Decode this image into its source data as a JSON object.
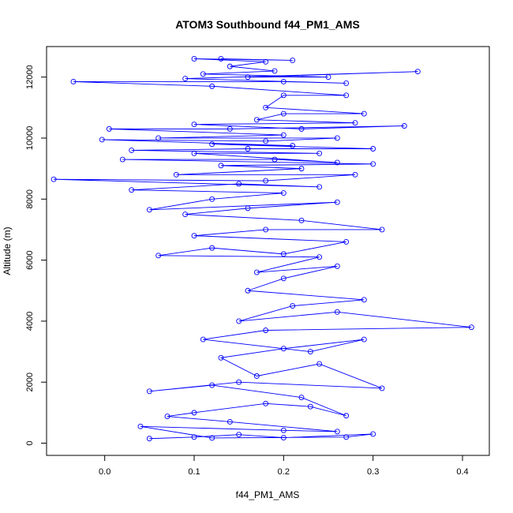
{
  "chart_data": {
    "type": "line",
    "title": "ATOM3 Southbound f44_PM1_AMS",
    "xlabel": "f44_PM1_AMS",
    "ylabel": "Altitude (m)",
    "xlim": [
      -0.065,
      0.43
    ],
    "ylim": [
      -400,
      13000
    ],
    "x_ticks": [
      0.0,
      0.1,
      0.2,
      0.3,
      0.4
    ],
    "x_tick_labels": [
      "0.0",
      "0.1",
      "0.2",
      "0.3",
      "0.4"
    ],
    "y_ticks": [
      0,
      2000,
      4000,
      6000,
      8000,
      10000,
      12000
    ],
    "y_tick_labels": [
      "0",
      "2000",
      "4000",
      "6000",
      "8000",
      "10000",
      "12000"
    ],
    "color": "#0000FF",
    "marker": "open-circle",
    "grid": false,
    "legend": "none",
    "series": [
      {
        "values": [
          {
            "x": 0.05,
            "y": 150
          },
          {
            "x": 0.1,
            "y": 200
          },
          {
            "x": 0.15,
            "y": 280
          },
          {
            "x": 0.2,
            "y": 180
          },
          {
            "x": 0.3,
            "y": 300
          },
          {
            "x": 0.27,
            "y": 200
          },
          {
            "x": 0.12,
            "y": 170
          },
          {
            "x": 0.04,
            "y": 550
          },
          {
            "x": 0.2,
            "y": 420
          },
          {
            "x": 0.26,
            "y": 380
          },
          {
            "x": 0.14,
            "y": 700
          },
          {
            "x": 0.07,
            "y": 880
          },
          {
            "x": 0.1,
            "y": 1000
          },
          {
            "x": 0.18,
            "y": 1300
          },
          {
            "x": 0.23,
            "y": 1200
          },
          {
            "x": 0.27,
            "y": 900
          },
          {
            "x": 0.22,
            "y": 1500
          },
          {
            "x": 0.12,
            "y": 1900
          },
          {
            "x": 0.05,
            "y": 1700
          },
          {
            "x": 0.15,
            "y": 2000
          },
          {
            "x": 0.31,
            "y": 1800
          },
          {
            "x": 0.24,
            "y": 2600
          },
          {
            "x": 0.17,
            "y": 2200
          },
          {
            "x": 0.13,
            "y": 2800
          },
          {
            "x": 0.2,
            "y": 3100
          },
          {
            "x": 0.29,
            "y": 3400
          },
          {
            "x": 0.23,
            "y": 3000
          },
          {
            "x": 0.11,
            "y": 3400
          },
          {
            "x": 0.18,
            "y": 3700
          },
          {
            "x": 0.41,
            "y": 3800
          },
          {
            "x": 0.26,
            "y": 4300
          },
          {
            "x": 0.15,
            "y": 4000
          },
          {
            "x": 0.21,
            "y": 4500
          },
          {
            "x": 0.29,
            "y": 4700
          },
          {
            "x": 0.16,
            "y": 5000
          },
          {
            "x": 0.2,
            "y": 5400
          },
          {
            "x": 0.26,
            "y": 5800
          },
          {
            "x": 0.17,
            "y": 5600
          },
          {
            "x": 0.24,
            "y": 6100
          },
          {
            "x": 0.06,
            "y": 6150
          },
          {
            "x": 0.12,
            "y": 6400
          },
          {
            "x": 0.2,
            "y": 6200
          },
          {
            "x": 0.27,
            "y": 6600
          },
          {
            "x": 0.1,
            "y": 6800
          },
          {
            "x": 0.18,
            "y": 7000
          },
          {
            "x": 0.31,
            "y": 7000
          },
          {
            "x": 0.22,
            "y": 7300
          },
          {
            "x": 0.09,
            "y": 7500
          },
          {
            "x": 0.16,
            "y": 7700
          },
          {
            "x": 0.26,
            "y": 7900
          },
          {
            "x": 0.05,
            "y": 7650
          },
          {
            "x": 0.12,
            "y": 8000
          },
          {
            "x": 0.2,
            "y": 8200
          },
          {
            "x": 0.03,
            "y": 8300
          },
          {
            "x": 0.15,
            "y": 8500
          },
          {
            "x": 0.24,
            "y": 8400
          },
          {
            "x": -0.057,
            "y": 8650
          },
          {
            "x": 0.18,
            "y": 8600
          },
          {
            "x": 0.28,
            "y": 8800
          },
          {
            "x": 0.08,
            "y": 8800
          },
          {
            "x": 0.22,
            "y": 9000
          },
          {
            "x": 0.13,
            "y": 9100
          },
          {
            "x": 0.3,
            "y": 9150
          },
          {
            "x": 0.02,
            "y": 9300
          },
          {
            "x": 0.19,
            "y": 9300
          },
          {
            "x": 0.26,
            "y": 9200
          },
          {
            "x": 0.1,
            "y": 9500
          },
          {
            "x": 0.24,
            "y": 9500
          },
          {
            "x": 0.03,
            "y": 9600
          },
          {
            "x": 0.16,
            "y": 9650
          },
          {
            "x": 0.3,
            "y": 9650
          },
          {
            "x": 0.12,
            "y": 9800
          },
          {
            "x": 0.21,
            "y": 9750
          },
          {
            "x": -0.003,
            "y": 9950
          },
          {
            "x": 0.18,
            "y": 9900
          },
          {
            "x": 0.26,
            "y": 10000
          },
          {
            "x": 0.06,
            "y": 10000
          },
          {
            "x": 0.2,
            "y": 10100
          },
          {
            "x": 0.005,
            "y": 10300
          },
          {
            "x": 0.14,
            "y": 10300
          },
          {
            "x": 0.335,
            "y": 10400
          },
          {
            "x": 0.22,
            "y": 10300
          },
          {
            "x": 0.1,
            "y": 10450
          },
          {
            "x": 0.28,
            "y": 10500
          },
          {
            "x": 0.17,
            "y": 10600
          },
          {
            "x": 0.2,
            "y": 10800
          },
          {
            "x": 0.29,
            "y": 10800
          },
          {
            "x": 0.18,
            "y": 11000
          },
          {
            "x": 0.2,
            "y": 11400
          },
          {
            "x": 0.27,
            "y": 11400
          },
          {
            "x": 0.12,
            "y": 11700
          },
          {
            "x": -0.035,
            "y": 11850
          },
          {
            "x": 0.2,
            "y": 11850
          },
          {
            "x": 0.27,
            "y": 11800
          },
          {
            "x": 0.09,
            "y": 11950
          },
          {
            "x": 0.35,
            "y": 12180
          },
          {
            "x": 0.16,
            "y": 12000
          },
          {
            "x": 0.25,
            "y": 12000
          },
          {
            "x": 0.11,
            "y": 12100
          },
          {
            "x": 0.19,
            "y": 12200
          },
          {
            "x": 0.14,
            "y": 12350
          },
          {
            "x": 0.18,
            "y": 12500
          },
          {
            "x": 0.1,
            "y": 12600
          },
          {
            "x": 0.21,
            "y": 12550
          },
          {
            "x": 0.13,
            "y": 12600
          }
        ]
      }
    ]
  }
}
